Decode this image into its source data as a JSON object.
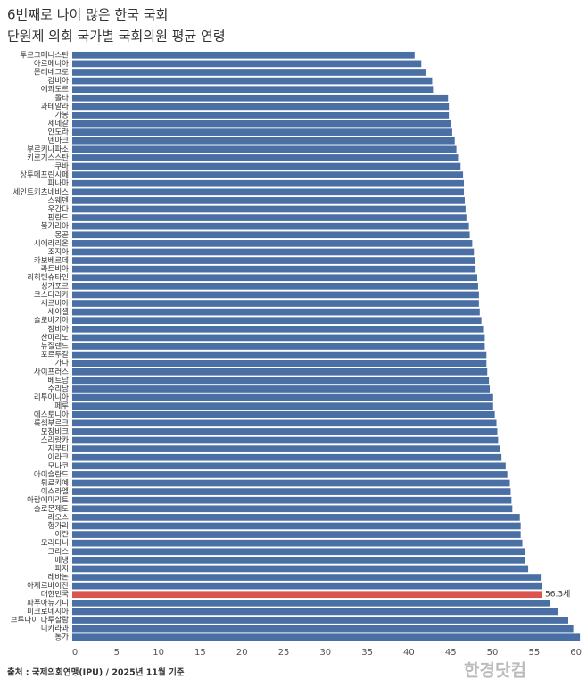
{
  "chart_data": {
    "type": "hbar",
    "title": "6번째로 나이 많은 한국 국회",
    "subtitle": "단원제 의회 국가별 국회의원 평균 연령",
    "source": "출처 : 국제의회연맹(IPU) / 2025년 11월 기준",
    "watermark": "한경닷컴",
    "categories": [
      "투르크메니스탄",
      "아르메니아",
      "몬테네그로",
      "감비아",
      "에콰도르",
      "몰타",
      "과테말라",
      "가봉",
      "세네갈",
      "안도라",
      "덴마크",
      "부르키나파소",
      "키르기스스탄",
      "쿠바",
      "상투메프린시페",
      "파나마",
      "세인트키츠네비스",
      "스웨덴",
      "우간다",
      "핀란드",
      "불가리아",
      "몽골",
      "시에라리온",
      "조지아",
      "카보베르데",
      "라트비아",
      "리히텐슈타인",
      "싱가포르",
      "코스타리카",
      "세르비아",
      "세이셸",
      "슬로바키아",
      "잠비아",
      "산마리노",
      "뉴질랜드",
      "포르투갈",
      "가나",
      "사이프러스",
      "베트남",
      "수리남",
      "리투아니아",
      "페루",
      "에스토니아",
      "룩셈부르크",
      "모잠비크",
      "스리랑카",
      "지부티",
      "이라크",
      "모나코",
      "아이슬란드",
      "튀르키예",
      "이스라엘",
      "아랍에미리트",
      "솔로몬제도",
      "라오스",
      "헝가리",
      "이란",
      "모리타니",
      "그리스",
      "베냉",
      "피지",
      "레바논",
      "아제르바이잔",
      "대한민국",
      "파푸아뉴기니",
      "미크로네시아",
      "브루나이 다루살람",
      "니카라과",
      "통가"
    ],
    "values": [
      41.0,
      41.8,
      42.3,
      43.1,
      43.2,
      45.0,
      45.1,
      45.1,
      45.3,
      45.5,
      45.8,
      46.0,
      46.2,
      46.5,
      46.8,
      46.9,
      46.9,
      47.0,
      47.1,
      47.2,
      47.5,
      47.6,
      47.9,
      48.1,
      48.2,
      48.3,
      48.5,
      48.6,
      48.7,
      48.7,
      48.8,
      49.0,
      49.2,
      49.4,
      49.4,
      49.6,
      49.6,
      49.7,
      49.9,
      50.0,
      50.4,
      50.4,
      50.6,
      50.8,
      50.9,
      51.0,
      51.2,
      51.4,
      51.9,
      52.1,
      52.4,
      52.5,
      52.6,
      52.7,
      53.6,
      53.7,
      53.7,
      53.9,
      54.2,
      54.2,
      54.6,
      56.1,
      56.2,
      56.3,
      57.2,
      58.2,
      59.4,
      60.0,
      60.8
    ],
    "value_labels": [
      null,
      null,
      null,
      null,
      null,
      null,
      null,
      null,
      null,
      null,
      null,
      null,
      null,
      null,
      null,
      null,
      null,
      null,
      null,
      null,
      null,
      null,
      null,
      null,
      null,
      null,
      null,
      null,
      null,
      null,
      null,
      null,
      null,
      null,
      null,
      null,
      null,
      null,
      null,
      null,
      null,
      null,
      null,
      null,
      null,
      null,
      null,
      null,
      null,
      null,
      null,
      null,
      null,
      null,
      null,
      null,
      null,
      null,
      null,
      null,
      null,
      null,
      null,
      "56.3세",
      null,
      null,
      null,
      null,
      null
    ],
    "color": "#4a6fa5",
    "highlight_category": "대한민국",
    "highlight_color": "#d9534f",
    "xlim": [
      0,
      61
    ],
    "xticks": [
      0,
      5,
      10,
      15,
      20,
      25,
      30,
      35,
      40,
      45,
      50,
      55,
      60
    ],
    "grid": false
  }
}
